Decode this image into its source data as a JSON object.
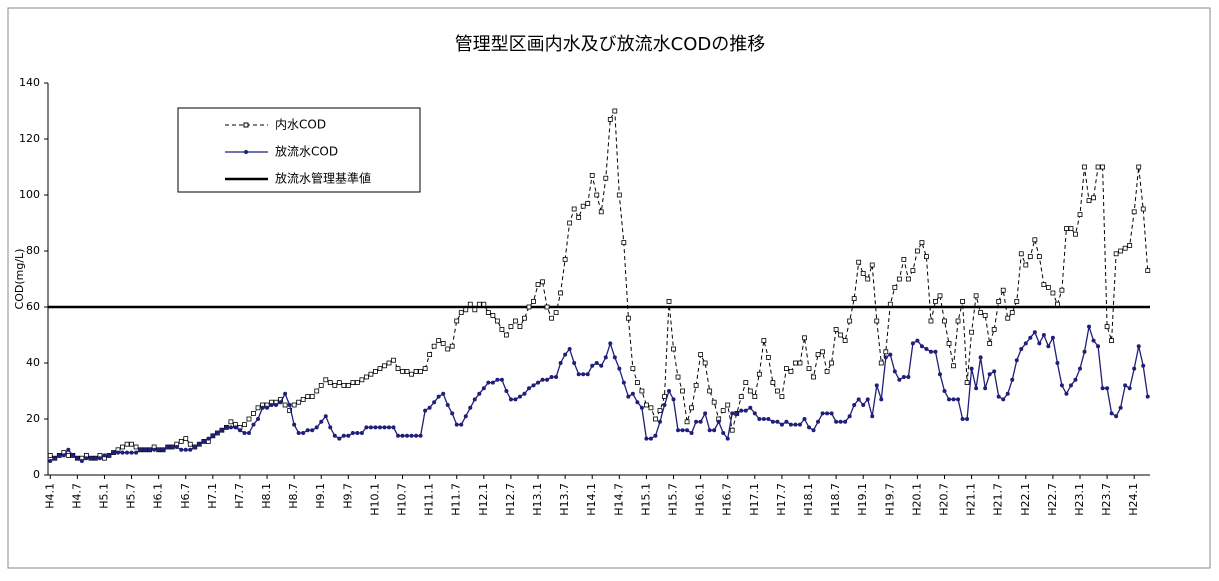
{
  "chart_data": {
    "type": "line",
    "title": "管理型区画内水及び放流水CODの推移",
    "y_label": "COD(mg/L)",
    "ylim": [
      0,
      140
    ],
    "yticks": [
      0,
      20,
      40,
      60,
      80,
      100,
      120,
      140
    ],
    "categories": [
      "H4.1",
      null,
      null,
      null,
      null,
      null,
      "H4.7",
      null,
      null,
      null,
      null,
      null,
      "H5.1",
      null,
      null,
      null,
      null,
      null,
      "H5.7",
      null,
      null,
      null,
      null,
      null,
      "H6.1",
      null,
      null,
      null,
      null,
      null,
      "H6.7",
      null,
      null,
      null,
      null,
      null,
      "H7.1",
      null,
      null,
      null,
      null,
      null,
      "H7.7",
      null,
      null,
      null,
      null,
      null,
      "H8.1",
      null,
      null,
      null,
      null,
      null,
      "H8.7",
      null,
      null,
      null,
      null,
      null,
      "H9.1",
      null,
      null,
      null,
      null,
      null,
      "H9.7",
      null,
      null,
      null,
      null,
      null,
      "H10.1",
      null,
      null,
      null,
      null,
      null,
      "H10.7",
      null,
      null,
      null,
      null,
      null,
      "H11.1",
      null,
      null,
      null,
      null,
      null,
      "H11.7",
      null,
      null,
      null,
      null,
      null,
      "H12.1",
      null,
      null,
      null,
      null,
      null,
      "H12.7",
      null,
      null,
      null,
      null,
      null,
      "H13.1",
      null,
      null,
      null,
      null,
      null,
      "H13.7",
      null,
      null,
      null,
      null,
      null,
      "H14.1",
      null,
      null,
      null,
      null,
      null,
      "H14.7",
      null,
      null,
      null,
      null,
      null,
      "H15.1",
      null,
      null,
      null,
      null,
      null,
      "H15.7",
      null,
      null,
      null,
      null,
      null,
      "H16.1",
      null,
      null,
      null,
      null,
      null,
      "H16.7",
      null,
      null,
      null,
      null,
      null,
      "H17.1",
      null,
      null,
      null,
      null,
      null,
      "H17.7",
      null,
      null,
      null,
      null,
      null,
      "H18.1",
      null,
      null,
      null,
      null,
      null,
      "H18.7",
      null,
      null,
      null,
      null,
      null,
      "H19.1",
      null,
      null,
      null,
      null,
      null,
      "H19.7",
      null,
      null,
      null,
      null,
      null,
      "H20.1",
      null,
      null,
      null,
      null,
      null,
      "H20.7",
      null,
      null,
      null,
      null,
      null,
      "H21.1",
      null,
      null,
      null,
      null,
      null,
      "H21.7",
      null,
      null,
      null,
      null,
      null,
      "H22.1",
      null,
      null,
      null,
      null,
      null,
      "H22.7",
      null,
      null,
      null,
      null,
      null,
      "H23.1",
      null,
      null,
      null,
      null,
      null,
      "H23.7",
      null,
      null,
      null,
      null,
      null,
      "H24.1",
      null,
      null,
      null
    ],
    "series": [
      {
        "name": "内水COD",
        "color": "#000000",
        "style": "dashed",
        "marker": "square",
        "values": [
          7,
          6,
          7,
          8,
          7,
          7,
          6,
          6,
          7,
          6,
          6,
          7,
          6,
          7,
          8,
          9,
          10,
          11,
          11,
          10,
          9,
          9,
          9,
          10,
          9,
          9,
          10,
          10,
          11,
          12,
          13,
          11,
          10,
          11,
          12,
          12,
          14,
          15,
          16,
          17,
          19,
          18,
          17,
          18,
          20,
          22,
          24,
          25,
          25,
          26,
          26,
          27,
          25,
          23,
          25,
          26,
          27,
          28,
          28,
          30,
          32,
          34,
          33,
          32,
          33,
          32,
          32,
          33,
          33,
          34,
          35,
          36,
          37,
          38,
          39,
          40,
          41,
          38,
          37,
          37,
          36,
          37,
          37,
          38,
          43,
          46,
          48,
          47,
          45,
          46,
          55,
          58,
          59,
          61,
          59,
          61,
          61,
          58,
          57,
          55,
          52,
          50,
          53,
          55,
          53,
          56,
          60,
          62,
          68,
          69,
          60,
          56,
          58,
          65,
          77,
          90,
          95,
          92,
          96,
          97,
          107,
          100,
          94,
          106,
          127,
          130,
          100,
          83,
          56,
          38,
          33,
          30,
          25,
          24,
          20,
          23,
          28,
          62,
          45,
          35,
          30,
          19,
          24,
          32,
          43,
          40,
          30,
          26,
          20,
          23,
          25,
          16,
          22,
          28,
          33,
          30,
          28,
          36,
          48,
          42,
          33,
          30,
          28,
          38,
          37,
          40,
          40,
          49,
          38,
          35,
          43,
          44,
          37,
          40,
          52,
          50,
          48,
          55,
          63,
          76,
          72,
          70,
          75,
          55,
          40,
          44,
          61,
          67,
          70,
          77,
          70,
          73,
          80,
          83,
          78,
          55,
          62,
          64,
          55,
          47,
          39,
          55,
          62,
          33,
          51,
          64,
          58,
          57,
          47,
          52,
          62,
          66,
          56,
          58,
          62,
          79,
          75,
          78,
          84,
          78,
          68,
          67,
          65,
          61,
          66,
          88,
          88,
          86,
          93,
          110,
          98,
          99,
          110,
          110,
          53,
          48,
          79,
          80,
          81,
          82,
          94,
          110,
          95,
          73
        ]
      },
      {
        "name": "放流水COD",
        "color": "#1f1f7a",
        "style": "solid",
        "marker": "dot",
        "values": [
          5,
          6,
          7,
          7,
          9,
          7,
          6,
          5,
          6,
          6,
          6,
          6,
          7,
          7,
          8,
          8,
          8,
          8,
          8,
          8,
          9,
          9,
          9,
          9,
          9,
          9,
          10,
          10,
          10,
          9,
          9,
          9,
          10,
          11,
          12,
          13,
          14,
          15,
          16,
          17,
          17,
          17,
          16,
          15,
          15,
          18,
          20,
          24,
          24,
          25,
          25,
          26,
          29,
          25,
          18,
          15,
          15,
          16,
          16,
          17,
          19,
          21,
          17,
          14,
          13,
          14,
          14,
          15,
          15,
          15,
          17,
          17,
          17,
          17,
          17,
          17,
          17,
          14,
          14,
          14,
          14,
          14,
          14,
          23,
          24,
          26,
          28,
          29,
          25,
          22,
          18,
          18,
          21,
          24,
          27,
          29,
          31,
          33,
          33,
          34,
          34,
          30,
          27,
          27,
          28,
          29,
          31,
          32,
          33,
          34,
          34,
          35,
          35,
          40,
          43,
          45,
          40,
          36,
          36,
          36,
          39,
          40,
          39,
          42,
          47,
          42,
          38,
          33,
          28,
          29,
          26,
          24,
          13,
          13,
          14,
          19,
          25,
          30,
          27,
          16,
          16,
          16,
          15,
          19,
          19,
          22,
          16,
          16,
          19,
          15,
          13,
          22,
          22,
          23,
          23,
          24,
          22,
          20,
          20,
          20,
          19,
          19,
          18,
          19,
          18,
          18,
          18,
          20,
          17,
          16,
          19,
          22,
          22,
          22,
          19,
          19,
          19,
          21,
          25,
          27,
          25,
          27,
          21,
          32,
          27,
          42,
          43,
          37,
          34,
          35,
          35,
          47,
          48,
          46,
          45,
          44,
          44,
          36,
          30,
          27,
          27,
          27,
          20,
          20,
          38,
          31,
          42,
          31,
          36,
          37,
          28,
          27,
          29,
          34,
          41,
          45,
          47,
          49,
          51,
          47,
          50,
          46,
          49,
          40,
          32,
          29,
          32,
          34,
          38,
          44,
          53,
          48,
          46,
          31,
          31,
          22,
          21,
          24,
          32,
          31,
          38,
          46,
          39,
          28
        ]
      }
    ],
    "reference_line": {
      "name": "放流水管理基準値",
      "value": 60,
      "color": "#000000"
    }
  }
}
